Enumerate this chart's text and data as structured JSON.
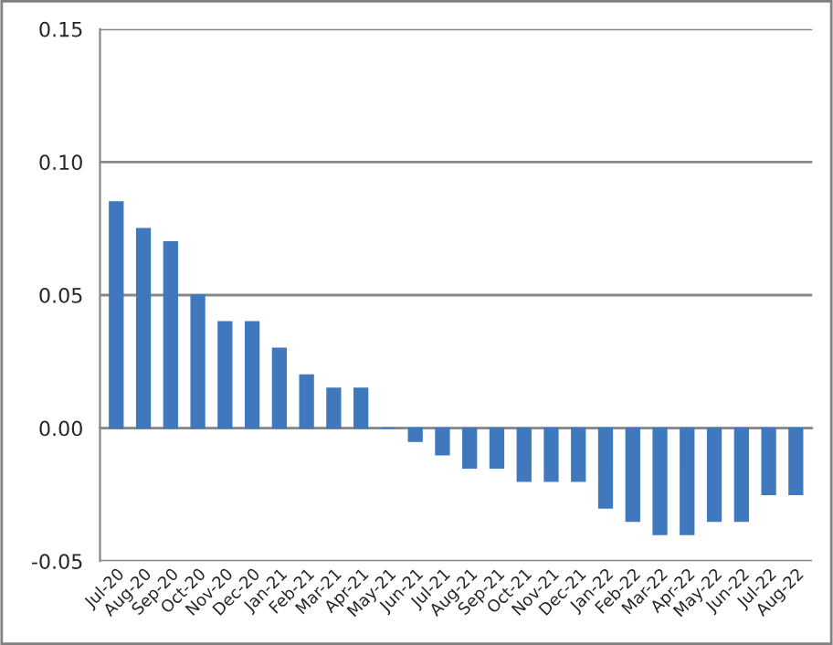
{
  "chart_data": {
    "type": "bar",
    "categories": [
      "Jul-20",
      "Aug-20",
      "Sep-20",
      "Oct-20",
      "Nov-20",
      "Dec-20",
      "Jan-21",
      "Feb-21",
      "Mar-21",
      "Apr-21",
      "May-21",
      "Jun-21",
      "Jul-21",
      "Aug-21",
      "Sep-21",
      "Oct-21",
      "Nov-21",
      "Dec-21",
      "Jan-22",
      "Feb-22",
      "Mar-22",
      "Apr-22",
      "May-22",
      "Jun-22",
      "Jul-22",
      "Aug-22"
    ],
    "values": [
      0.085,
      0.075,
      0.07,
      0.05,
      0.04,
      0.04,
      0.03,
      0.02,
      0.015,
      0.015,
      0,
      -0.005,
      -0.01,
      -0.015,
      -0.015,
      -0.02,
      -0.02,
      -0.02,
      -0.03,
      -0.035,
      -0.04,
      -0.04,
      -0.035,
      -0.035,
      -0.025,
      -0.025
    ],
    "color": "#3f78bd",
    "ylim": [
      -0.05,
      0.15
    ],
    "yticks": [
      {
        "value": -0.05,
        "label": "-0.05"
      },
      {
        "value": 0,
        "label": "0.00"
      },
      {
        "value": 0.05,
        "label": "0.05"
      },
      {
        "value": 0.1,
        "label": "0.10"
      },
      {
        "value": 0.15,
        "label": "0.15"
      }
    ],
    "grid": "y"
  }
}
